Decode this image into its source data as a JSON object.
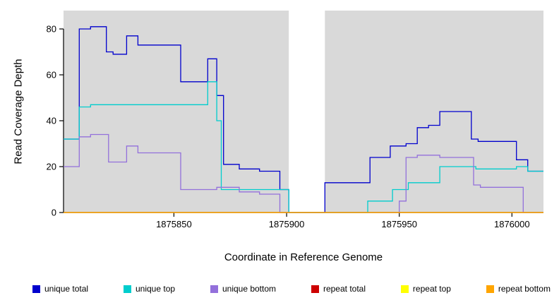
{
  "chart_data": {
    "type": "line",
    "subtype": "step-coverage-plot",
    "title": "",
    "xlabel": "Coordinate in Reference Genome",
    "ylabel": "Read Coverage Depth",
    "xlim": [
      1875801,
      1876014
    ],
    "ylim": [
      0,
      88
    ],
    "xticks": [
      1875850,
      1875900,
      1875950,
      1876000
    ],
    "yticks": [
      0,
      20,
      40,
      60,
      80
    ],
    "grid": false,
    "plot_bg": "#D9D9D9",
    "gap_region": [
      1875901,
      1875917
    ],
    "axis_color": "#000000",
    "legend_position": "bottom",
    "series": [
      {
        "name": "unique total",
        "color": "#0000CD",
        "points": [
          [
            1875801,
            32
          ],
          [
            1875808,
            80
          ],
          [
            1875813,
            81
          ],
          [
            1875820,
            70
          ],
          [
            1875823,
            69
          ],
          [
            1875829,
            77
          ],
          [
            1875834,
            73
          ],
          [
            1875853,
            57
          ],
          [
            1875865,
            67
          ],
          [
            1875869,
            51
          ],
          [
            1875872,
            21
          ],
          [
            1875879,
            19
          ],
          [
            1875888,
            18
          ],
          [
            1875897,
            10
          ],
          [
            1875901,
            0
          ],
          [
            1875917,
            13
          ],
          [
            1875937,
            24
          ],
          [
            1875946,
            29
          ],
          [
            1875953,
            30
          ],
          [
            1875958,
            37
          ],
          [
            1875963,
            38
          ],
          [
            1875968,
            44
          ],
          [
            1875982,
            32
          ],
          [
            1875985,
            31
          ],
          [
            1876002,
            23
          ],
          [
            1876007,
            18
          ],
          [
            1876014,
            18
          ]
        ]
      },
      {
        "name": "unique top",
        "color": "#00CDCD",
        "points": [
          [
            1875801,
            32
          ],
          [
            1875808,
            46
          ],
          [
            1875813,
            47
          ],
          [
            1875865,
            57
          ],
          [
            1875869,
            40
          ],
          [
            1875871,
            10
          ],
          [
            1875901,
            0
          ],
          [
            1875917,
            0
          ],
          [
            1875936,
            5
          ],
          [
            1875947,
            10
          ],
          [
            1875954,
            13
          ],
          [
            1875968,
            20
          ],
          [
            1875984,
            19
          ],
          [
            1876002,
            20
          ],
          [
            1876007,
            18
          ],
          [
            1876014,
            18
          ]
        ]
      },
      {
        "name": "unique bottom",
        "color": "#9370DB",
        "points": [
          [
            1875801,
            20
          ],
          [
            1875808,
            33
          ],
          [
            1875813,
            34
          ],
          [
            1875821,
            22
          ],
          [
            1875829,
            29
          ],
          [
            1875834,
            26
          ],
          [
            1875853,
            10
          ],
          [
            1875869,
            11
          ],
          [
            1875879,
            9
          ],
          [
            1875888,
            8
          ],
          [
            1875897,
            0
          ],
          [
            1875950,
            5
          ],
          [
            1875953,
            24
          ],
          [
            1875958,
            25
          ],
          [
            1875968,
            24
          ],
          [
            1875983,
            12
          ],
          [
            1875986,
            11
          ],
          [
            1876005,
            0
          ],
          [
            1876014,
            0
          ]
        ]
      },
      {
        "name": "repeat total",
        "color": "#CD0000",
        "points": [
          [
            1875801,
            0
          ],
          [
            1876014,
            0
          ]
        ]
      },
      {
        "name": "repeat top",
        "color": "#FFFF00",
        "points": [
          [
            1875801,
            0
          ],
          [
            1876014,
            0
          ]
        ]
      },
      {
        "name": "repeat bottom",
        "color": "#FFA500",
        "points": [
          [
            1875801,
            0
          ],
          [
            1876014,
            0
          ]
        ]
      }
    ],
    "legend": [
      {
        "label": "unique total",
        "color": "#0000CD"
      },
      {
        "label": "unique top",
        "color": "#00CDCD"
      },
      {
        "label": "unique bottom",
        "color": "#9370DB"
      },
      {
        "label": "repeat total",
        "color": "#CD0000"
      },
      {
        "label": "repeat top",
        "color": "#FFFF00"
      },
      {
        "label": "repeat bottom",
        "color": "#FFA500"
      }
    ]
  }
}
